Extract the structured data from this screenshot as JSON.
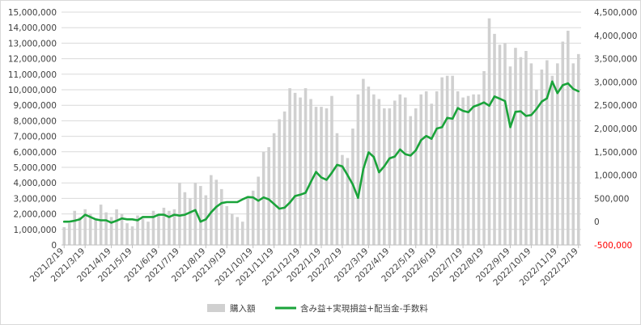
{
  "chart_data": {
    "type": "bar+line",
    "title": "",
    "legend_position": "bottom",
    "grid": {
      "horizontal": true,
      "vertical": false
    },
    "y_left": {
      "min": 0,
      "max": 15000000,
      "ticks": [
        "0",
        "1,000,000",
        "2,000,000",
        "3,000,000",
        "4,000,000",
        "5,000,000",
        "6,000,000",
        "7,000,000",
        "8,000,000",
        "9,000,000",
        "10,000,000",
        "11,000,000",
        "12,000,000",
        "13,000,000",
        "14,000,000",
        "15,000,000"
      ]
    },
    "y_right": {
      "min": -500000,
      "max": 4500000,
      "ticks": [
        "-500,000",
        "0",
        "500,000",
        "1,000,000",
        "1,500,000",
        "2,000,000",
        "2,500,000",
        "3,000,000",
        "3,500,000",
        "4,000,000",
        "4,500,000"
      ],
      "negative_color": "#ff0000"
    },
    "x_tick_labels": [
      "2021/2/19",
      "2021/3/19",
      "2021/4/19",
      "2021/5/19",
      "2021/6/19",
      "2021/7/19",
      "2021/8/19",
      "2021/9/19",
      "2021/10/19",
      "2021/11/19",
      "2021/12/19",
      "2022/1/19",
      "2022/2/19",
      "2022/3/19",
      "2022/4/19",
      "2022/5/19",
      "2022/6/19",
      "2022/7/19",
      "2022/8/19",
      "2022/9/19",
      "2022/10/19",
      "2022/11/19",
      "2022/12/19"
    ],
    "series": [
      {
        "name": "購入額",
        "type": "bar",
        "axis": "left",
        "color": "#d0d0d0",
        "values": [
          1150000,
          1400000,
          2200000,
          1800000,
          2300000,
          2000000,
          1700000,
          2600000,
          2100000,
          1800000,
          2300000,
          2000000,
          1400000,
          1200000,
          1900000,
          1700000,
          1500000,
          2200000,
          1900000,
          2400000,
          2200000,
          2300000,
          4000000,
          3400000,
          3000000,
          4000000,
          3800000,
          3200000,
          4500000,
          4200000,
          3600000,
          2500000,
          2000000,
          1800000,
          1500000,
          3000000,
          3500000,
          4400000,
          6000000,
          6300000,
          7200000,
          8100000,
          8600000,
          10100000,
          9800000,
          9500000,
          10100000,
          9400000,
          8900000,
          8900000,
          8800000,
          9600000,
          7200000,
          5800000,
          5600000,
          7500000,
          9700000,
          10700000,
          10200000,
          9700000,
          9400000,
          8800000,
          8800000,
          9300000,
          9700000,
          9500000,
          8300000,
          8800000,
          9700000,
          9900000,
          9100000,
          9900000,
          10800000,
          10900000,
          10900000,
          9900000,
          9500000,
          9600000,
          9700000,
          9700000,
          11200000,
          14600000,
          13600000,
          12900000,
          13000000,
          11500000,
          12700000,
          12100000,
          12500000,
          11700000,
          10000000,
          11300000,
          11900000,
          10900000,
          11700000,
          13100000,
          13800000,
          11700000,
          12300000
        ]
      },
      {
        "name": "含み益+実現損益+配当金-手数料",
        "type": "line",
        "axis": "right",
        "color": "#1aa33a",
        "values": [
          0,
          0,
          20000,
          50000,
          150000,
          100000,
          50000,
          30000,
          30000,
          -20000,
          20000,
          70000,
          50000,
          50000,
          30000,
          100000,
          100000,
          100000,
          150000,
          150000,
          100000,
          150000,
          130000,
          150000,
          200000,
          250000,
          0,
          50000,
          200000,
          320000,
          400000,
          420000,
          420000,
          420000,
          480000,
          530000,
          520000,
          450000,
          520000,
          480000,
          380000,
          280000,
          300000,
          410000,
          550000,
          580000,
          620000,
          850000,
          1070000,
          950000,
          900000,
          1050000,
          1220000,
          1190000,
          1000000,
          800000,
          510000,
          1130000,
          1490000,
          1390000,
          1060000,
          1190000,
          1360000,
          1400000,
          1550000,
          1450000,
          1420000,
          1530000,
          1750000,
          1840000,
          1780000,
          2000000,
          2030000,
          2230000,
          2210000,
          2440000,
          2380000,
          2350000,
          2470000,
          2510000,
          2560000,
          2490000,
          2690000,
          2640000,
          2590000,
          2030000,
          2360000,
          2370000,
          2270000,
          2290000,
          2420000,
          2580000,
          2650000,
          3010000,
          2760000,
          2930000,
          2970000,
          2850000,
          2800000
        ]
      }
    ]
  }
}
